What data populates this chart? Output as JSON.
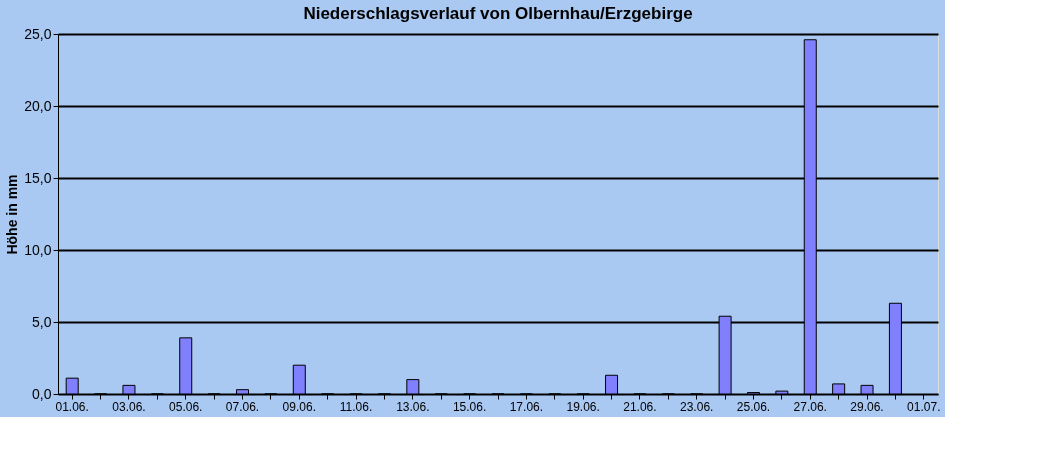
{
  "chart_data": {
    "type": "bar",
    "title": "Niederschlagsverlauf von Olbernhau/Erzgebirge",
    "ylabel": "Höhe in  mm",
    "categories": [
      "01.06.",
      null,
      "03.06.",
      null,
      "05.06.",
      null,
      "07.06.",
      null,
      "09.06.",
      null,
      "11.06.",
      null,
      "13.06.",
      null,
      "15.06.",
      null,
      "17.06.",
      null,
      "19.06.",
      null,
      "21.06.",
      null,
      "23.06.",
      null,
      "25.06.",
      null,
      "27.06.",
      null,
      "29.06.",
      null,
      "01.07."
    ],
    "series": [
      {
        "color": "#8080ff",
        "values": [
          1.1,
          0,
          0.6,
          0,
          3.9,
          0,
          0.3,
          0,
          2.0,
          0,
          0,
          0,
          1.0,
          0,
          0,
          0,
          0,
          0,
          0,
          1.3,
          0,
          0,
          0,
          5.4,
          0.1,
          0.2,
          24.6,
          0.7,
          0.6,
          6.3,
          null
        ]
      }
    ],
    "ylim": [
      0,
      25
    ],
    "yticks": [
      {
        "value": 0,
        "label": "0,0"
      },
      {
        "value": 5,
        "label": "5,0"
      },
      {
        "value": 10,
        "label": "10,0"
      },
      {
        "value": 15,
        "label": "15,0"
      },
      {
        "value": 20,
        "label": "20,0"
      },
      {
        "value": 25,
        "label": "25,0"
      }
    ],
    "grid": "y",
    "legend": false
  }
}
